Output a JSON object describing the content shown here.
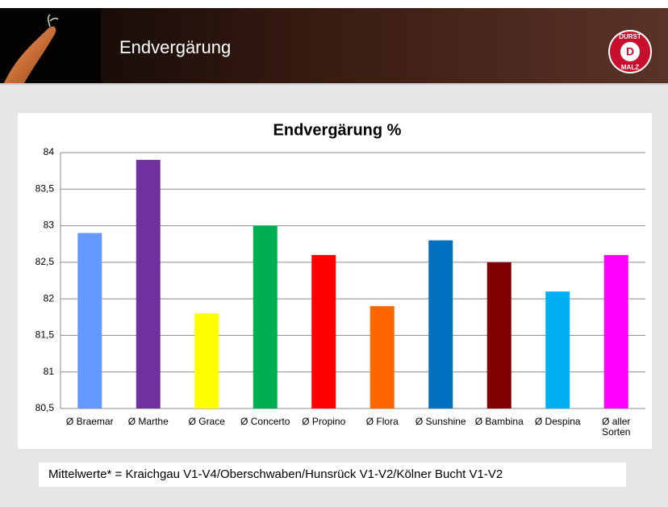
{
  "header": {
    "title": "Endvergärung",
    "logo": {
      "top": "DURST",
      "bottom": "MALZ"
    }
  },
  "chart_data": {
    "type": "bar",
    "title": "Endvergärung %",
    "categories": [
      "Ø Braemar",
      "Ø Marthe",
      "Ø Grace",
      "Ø Concerto",
      "Ø Propino",
      "Ø Flora",
      "Ø Sunshine",
      "Ø Bambina",
      "Ø Despina",
      "Ø aller Sorten"
    ],
    "values": [
      82.9,
      83.9,
      81.8,
      83.0,
      82.6,
      81.9,
      82.8,
      82.5,
      82.1,
      82.6
    ],
    "colors": [
      "#6699ff",
      "#7030a0",
      "#ffff00",
      "#00b050",
      "#ff0000",
      "#ff6600",
      "#0070c0",
      "#800000",
      "#00b0f0",
      "#ff00ff"
    ],
    "ylim": [
      80.5,
      84
    ],
    "yticks": [
      {
        "value": 80.5,
        "label": "80,5"
      },
      81,
      {
        "value": 81.5,
        "label": "81,5"
      },
      82,
      {
        "value": 82.5,
        "label": "82,5"
      },
      83,
      {
        "value": 83.5,
        "label": "83,5"
      },
      84
    ],
    "grid": true
  },
  "footnote": "Mittelwerte* = Kraichgau V1-V4/Oberschwaben/Hunsrück V1-V2/Kölner Bucht V1-V2"
}
